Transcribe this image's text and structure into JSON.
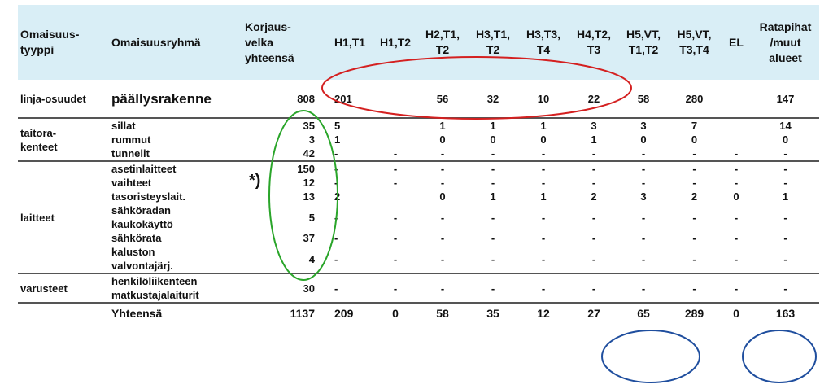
{
  "headers": [
    {
      "key": "type",
      "lines": [
        "Omaisuus-",
        "tyyppi"
      ]
    },
    {
      "key": "group",
      "lines": [
        "Omaisuusryhmä"
      ]
    },
    {
      "key": "total",
      "lines": [
        "Korjaus-",
        "velka",
        "yhteensä"
      ]
    },
    {
      "key": "c1",
      "lines": [
        "H1,T1"
      ]
    },
    {
      "key": "c2",
      "lines": [
        "H1,T2"
      ]
    },
    {
      "key": "c3",
      "lines": [
        "H2,T1,",
        "T2"
      ]
    },
    {
      "key": "c4",
      "lines": [
        "H3,T1,",
        "T2"
      ]
    },
    {
      "key": "c5",
      "lines": [
        "H3,T3,",
        "T4"
      ]
    },
    {
      "key": "c6",
      "lines": [
        "H4,T2,",
        "T3"
      ]
    },
    {
      "key": "c7",
      "lines": [
        "H5,VT,",
        "T1,T2"
      ]
    },
    {
      "key": "c8",
      "lines": [
        "H5,VT,",
        "T3,T4"
      ]
    },
    {
      "key": "c9",
      "lines": [
        "EL"
      ]
    },
    {
      "key": "c10",
      "lines": [
        "Ratapihat",
        "/muut",
        "alueet"
      ]
    }
  ],
  "sections": [
    {
      "type": "linja-osuudet",
      "rows": [
        {
          "group": [
            "päällysrakenne"
          ],
          "total": "808",
          "values": [
            "201",
            "",
            "56",
            "32",
            "10",
            "22",
            "58",
            "280",
            "",
            "147"
          ]
        }
      ]
    },
    {
      "type": "taitora-\nkenteet",
      "type_lines": [
        "taitora-",
        "kenteet"
      ],
      "rows": [
        {
          "group": [
            "sillat"
          ],
          "total": "35",
          "values": [
            "5",
            "",
            "1",
            "1",
            "1",
            "3",
            "3",
            "7",
            "",
            "14"
          ]
        },
        {
          "group": [
            "rummut"
          ],
          "total": "3",
          "values": [
            "1",
            "",
            "0",
            "0",
            "0",
            "1",
            "0",
            "0",
            "",
            "0"
          ]
        },
        {
          "group": [
            "tunnelit"
          ],
          "total": "42",
          "values": [
            "-",
            "-",
            "-",
            "-",
            "-",
            "-",
            "-",
            "-",
            "-",
            "-"
          ]
        }
      ]
    },
    {
      "type": "laitteet",
      "type_lines": [
        "laitteet"
      ],
      "rows": [
        {
          "group": [
            "asetinlaitteet"
          ],
          "total": "150",
          "values": [
            "-",
            "-",
            "-",
            "-",
            "-",
            "-",
            "-",
            "-",
            "-",
            "-"
          ]
        },
        {
          "group": [
            "vaihteet"
          ],
          "total": "12",
          "values": [
            "-",
            "-",
            "-",
            "-",
            "-",
            "-",
            "-",
            "-",
            "-",
            "-"
          ]
        },
        {
          "group": [
            "tasoristeyslait."
          ],
          "total": "13",
          "values": [
            "2",
            "",
            "0",
            "1",
            "1",
            "2",
            "3",
            "2",
            "0",
            "1"
          ]
        },
        {
          "group": [
            "sähköradan",
            "kaukokäyttö"
          ],
          "total": "5",
          "values": [
            "-",
            "-",
            "-",
            "-",
            "-",
            "-",
            "-",
            "-",
            "-",
            "-"
          ]
        },
        {
          "group": [
            "sähkörata"
          ],
          "total": "37",
          "values": [
            "-",
            "-",
            "-",
            "-",
            "-",
            "-",
            "-",
            "-",
            "-",
            "-"
          ]
        },
        {
          "group": [
            "kaluston",
            "valvontajärj."
          ],
          "total": "4",
          "values": [
            "-",
            "-",
            "-",
            "-",
            "-",
            "-",
            "-",
            "-",
            "-",
            "-"
          ]
        }
      ]
    },
    {
      "type": "varusteet",
      "type_lines": [
        "varusteet"
      ],
      "rows": [
        {
          "group": [
            "henkilöliikenteen",
            "matkustajalaiturit"
          ],
          "total": "30",
          "values": [
            "-",
            "-",
            "-",
            "-",
            "-",
            "-",
            "-",
            "-",
            "-",
            "-"
          ]
        }
      ]
    }
  ],
  "summary": {
    "label": "Yhteensä",
    "total": "1137",
    "values": [
      "209",
      "0",
      "58",
      "35",
      "12",
      "27",
      "65",
      "289",
      "0",
      "163"
    ]
  },
  "asterisk_note": "*)",
  "annotation_colors": {
    "red": "#d42020",
    "green": "#2aa52a",
    "blue": "#1f4e9e"
  }
}
